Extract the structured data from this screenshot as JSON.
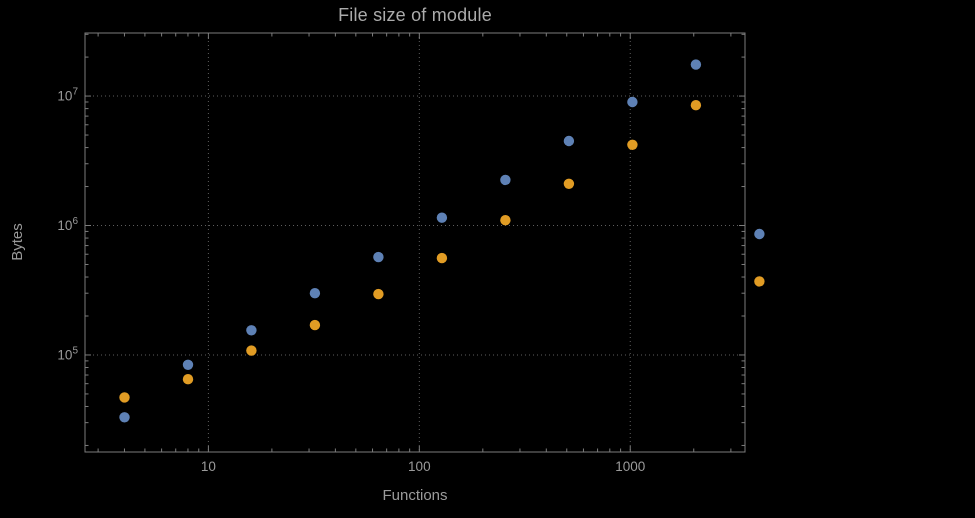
{
  "chart_data": {
    "type": "scatter",
    "title": "File size of module",
    "xlabel": "Functions",
    "ylabel": "Bytes",
    "x_scale": "log",
    "y_scale": "log",
    "grid": true,
    "legend_position": "none",
    "xlim": [
      2.6,
      3500
    ],
    "ylim": [
      17800,
      30700000
    ],
    "x_ticks": [
      10,
      100,
      1000
    ],
    "x_tick_labels": [
      "10",
      "100",
      "1000"
    ],
    "y_ticks": [
      100000,
      1000000,
      10000000
    ],
    "y_tick_exponents": [
      5,
      6,
      7
    ],
    "x": [
      4,
      8,
      16,
      32,
      64,
      128,
      256,
      512,
      1024,
      2048,
      4096
    ],
    "series": [
      {
        "name": "series-1",
        "color": "#5e81b5",
        "values": [
          33000,
          84000,
          155000,
          300000,
          570000,
          1150000,
          2250000,
          4500000,
          9000000,
          17500000,
          860000
        ]
      },
      {
        "name": "series-2",
        "color": "#e19c24",
        "values": [
          47000,
          65000,
          108000,
          170000,
          295000,
          560000,
          1100000,
          2100000,
          4200000,
          8500000,
          370000
        ]
      }
    ]
  },
  "style": {
    "background": "#000000",
    "frame_color": "#7d7d7d",
    "grid_color": "#5e5e5e",
    "tick_label_color": "#9b9b9b",
    "title_color": "#ababab",
    "axis_label_color": "#9b9b9b"
  }
}
